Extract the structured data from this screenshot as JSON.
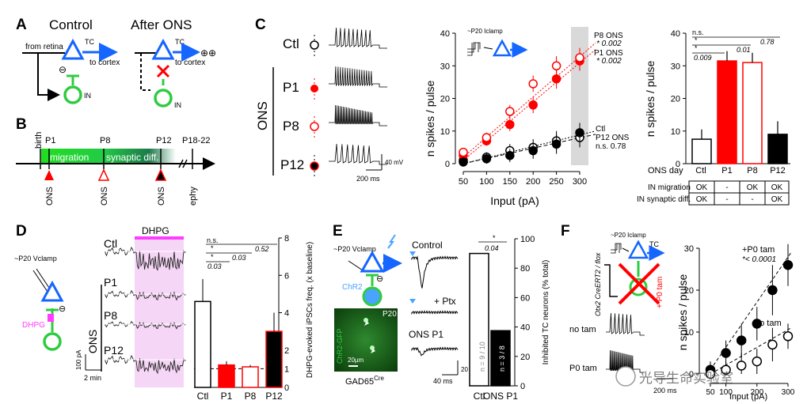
{
  "colors": {
    "red": "#ff0000",
    "blue": "#1565ff",
    "green": "#2ecc40",
    "magenta": "#ff3cff",
    "gray": "#d9d9d9"
  },
  "panelA": {
    "label": "A",
    "control_title": "Control",
    "after_title": "After ONS",
    "from_retina": "from retina",
    "tc": "TC",
    "in": "IN",
    "to_cortex": "to cortex",
    "to_cortex_after": "to cortex",
    "inhib_sign": "⊖",
    "plusplus": "⊕⊕"
  },
  "panelB": {
    "label": "B",
    "top_labels": {
      "birth": "birth",
      "p1": "P1",
      "p8": "P8",
      "p12": "P12",
      "p18": "P18-22"
    },
    "migration": "migration",
    "synaptic": "synaptic diff.",
    "bottom_labels": {
      "ons1": "ONS",
      "ons2": "ONS",
      "ons3": "ONS",
      "ephy": "ephy"
    }
  },
  "panelC": {
    "label": "C",
    "ons": "ONS",
    "rows": [
      "Ctl",
      "P1",
      "P8",
      "P12"
    ],
    "scale_mv": "40 mV",
    "scale_ms": "200 ms",
    "iclamp": "~P20 Iclamp",
    "line_chart": {
      "ylabel": "n spikes / pulse",
      "xlabel": "Input (pA)",
      "legend": [
        {
          "name": "P8 ONS",
          "p": "* 0.002"
        },
        {
          "name": "P1 ONS",
          "p": "* 0.002"
        },
        {
          "name": "Ctl",
          "p": ""
        },
        {
          "name": "P12 ONS",
          "p": "n.s. 0.78"
        }
      ]
    },
    "bar_chart": {
      "ylabel": "n spikes / pulse",
      "sig": [
        "n.s.",
        "*",
        "*",
        "0.009",
        "0.01",
        "0.78"
      ],
      "table": {
        "header": [
          "ONS day",
          "Ctl",
          "P1",
          "P8",
          "P12"
        ],
        "rows": [
          [
            "IN migration",
            "OK",
            "-",
            "OK",
            "OK"
          ],
          [
            "IN synaptic diff.",
            "OK",
            "-",
            "-",
            "OK"
          ]
        ]
      }
    }
  },
  "panelD": {
    "label": "D",
    "vclamp": "~P20 Vclamp",
    "dhpg": "DHPG",
    "ons": "ONS",
    "rows": [
      "Ctl",
      "P1",
      "P8",
      "P12"
    ],
    "scale_pa": "100 pA",
    "scale_min": "2 min",
    "ylabel": "DHPG-evoked iPSCs freq. (x baseline)",
    "sig": [
      "n.s.",
      "*",
      "*",
      "0.52",
      "0.03",
      "0.03"
    ]
  },
  "panelE": {
    "label": "E",
    "vclamp": "~P20 Vclamp",
    "chr2": "ChR2",
    "micro_label": "P20",
    "chr2gfp": "ChR2-GFP",
    "scale_um": "20µm",
    "gad": "GAD65",
    "gad_sup": "Cre",
    "traces": [
      "Control",
      "+ Ptx",
      "ONS P1"
    ],
    "scale_pa": "20 pA",
    "scale_ms": "40 ms",
    "ylabel": "Inhibited TC neurons (% total)",
    "sig": [
      "*",
      "0.04"
    ],
    "n_ctl": "n = 9 / 10",
    "n_ons": "n = 3 / 8"
  },
  "panelF": {
    "label": "F",
    "iclamp": "~P20 Iclamp",
    "cre": "Otx2 CreERT2 / flox",
    "p0tam_side": "+ P0 tam",
    "tc": "TC",
    "no_tam": "no tam",
    "p0_tam": "P0 tam",
    "scale_ms": "200 ms",
    "legend_top": "+P0 tam",
    "legend_p": "*< 0.0001",
    "legend_no": "no tam",
    "ylabel": "n spikes / pulse",
    "xlabel": "Input (pA)",
    "watermark": "光导生命实验室"
  },
  "chart_data": [
    {
      "type": "line",
      "panel": "C-left",
      "x": [
        50,
        100,
        150,
        200,
        250,
        300
      ],
      "ylim": [
        0,
        40
      ],
      "xlim": [
        50,
        300
      ],
      "yticks": [
        0,
        10,
        20,
        30,
        40
      ],
      "series": [
        {
          "name": "Ctl",
          "values": [
            1,
            2,
            4,
            5,
            7,
            8
          ]
        },
        {
          "name": "P1 ONS",
          "values": [
            2.5,
            7,
            12,
            18,
            26,
            31.5
          ]
        },
        {
          "name": "P8 ONS",
          "values": [
            3.5,
            8,
            16,
            24.5,
            30,
            32.5
          ]
        },
        {
          "name": "P12 ONS",
          "values": [
            0.5,
            1.5,
            2.5,
            4,
            6,
            9.5
          ]
        }
      ],
      "ylabel": "n spikes / pulse",
      "xlabel": "Input (pA)",
      "highlight_x": 300
    },
    {
      "type": "bar",
      "panel": "C-right",
      "categories": [
        "Ctl",
        "P1",
        "P8",
        "P12"
      ],
      "values": [
        7.5,
        31.5,
        31,
        9
      ],
      "errors": [
        3,
        3,
        3,
        4
      ],
      "ylim": [
        0,
        40
      ],
      "yticks": [
        0,
        10,
        20,
        30,
        40
      ],
      "ylabel": "n spikes / pulse"
    },
    {
      "type": "bar",
      "panel": "D",
      "categories": [
        "Ctl",
        "P1",
        "P8",
        "P12"
      ],
      "values": [
        4.6,
        1.2,
        1.1,
        3.0
      ],
      "errors": [
        1.2,
        0.2,
        0.1,
        1.0
      ],
      "ylim": [
        0,
        8
      ],
      "yticks": [
        0,
        1,
        2,
        4,
        6,
        8
      ],
      "baseline": 1,
      "ylabel": "DHPG-evoked iPSCs freq. (x baseline)"
    },
    {
      "type": "bar",
      "panel": "E",
      "categories": [
        "Ctl",
        "ONS P1"
      ],
      "values": [
        90,
        37.5
      ],
      "ylim": [
        0,
        100
      ],
      "yticks": [
        0,
        20,
        40,
        60,
        80,
        100
      ],
      "ylabel": "Inhibited TC neurons (% total)"
    },
    {
      "type": "scatter",
      "panel": "F",
      "x": [
        50,
        100,
        150,
        200,
        250,
        300
      ],
      "ylim": [
        0,
        30
      ],
      "yticks": [
        0,
        10,
        20,
        30
      ],
      "xticks": [
        50,
        100,
        200,
        300
      ],
      "series": [
        {
          "name": "+P0 tam",
          "values": [
            1,
            5,
            8,
            12,
            20,
            26
          ]
        },
        {
          "name": "no tam",
          "values": [
            0,
            1,
            2,
            3,
            7,
            9
          ]
        }
      ],
      "ylabel": "n spikes / pulse",
      "xlabel": "Input (pA)"
    }
  ]
}
